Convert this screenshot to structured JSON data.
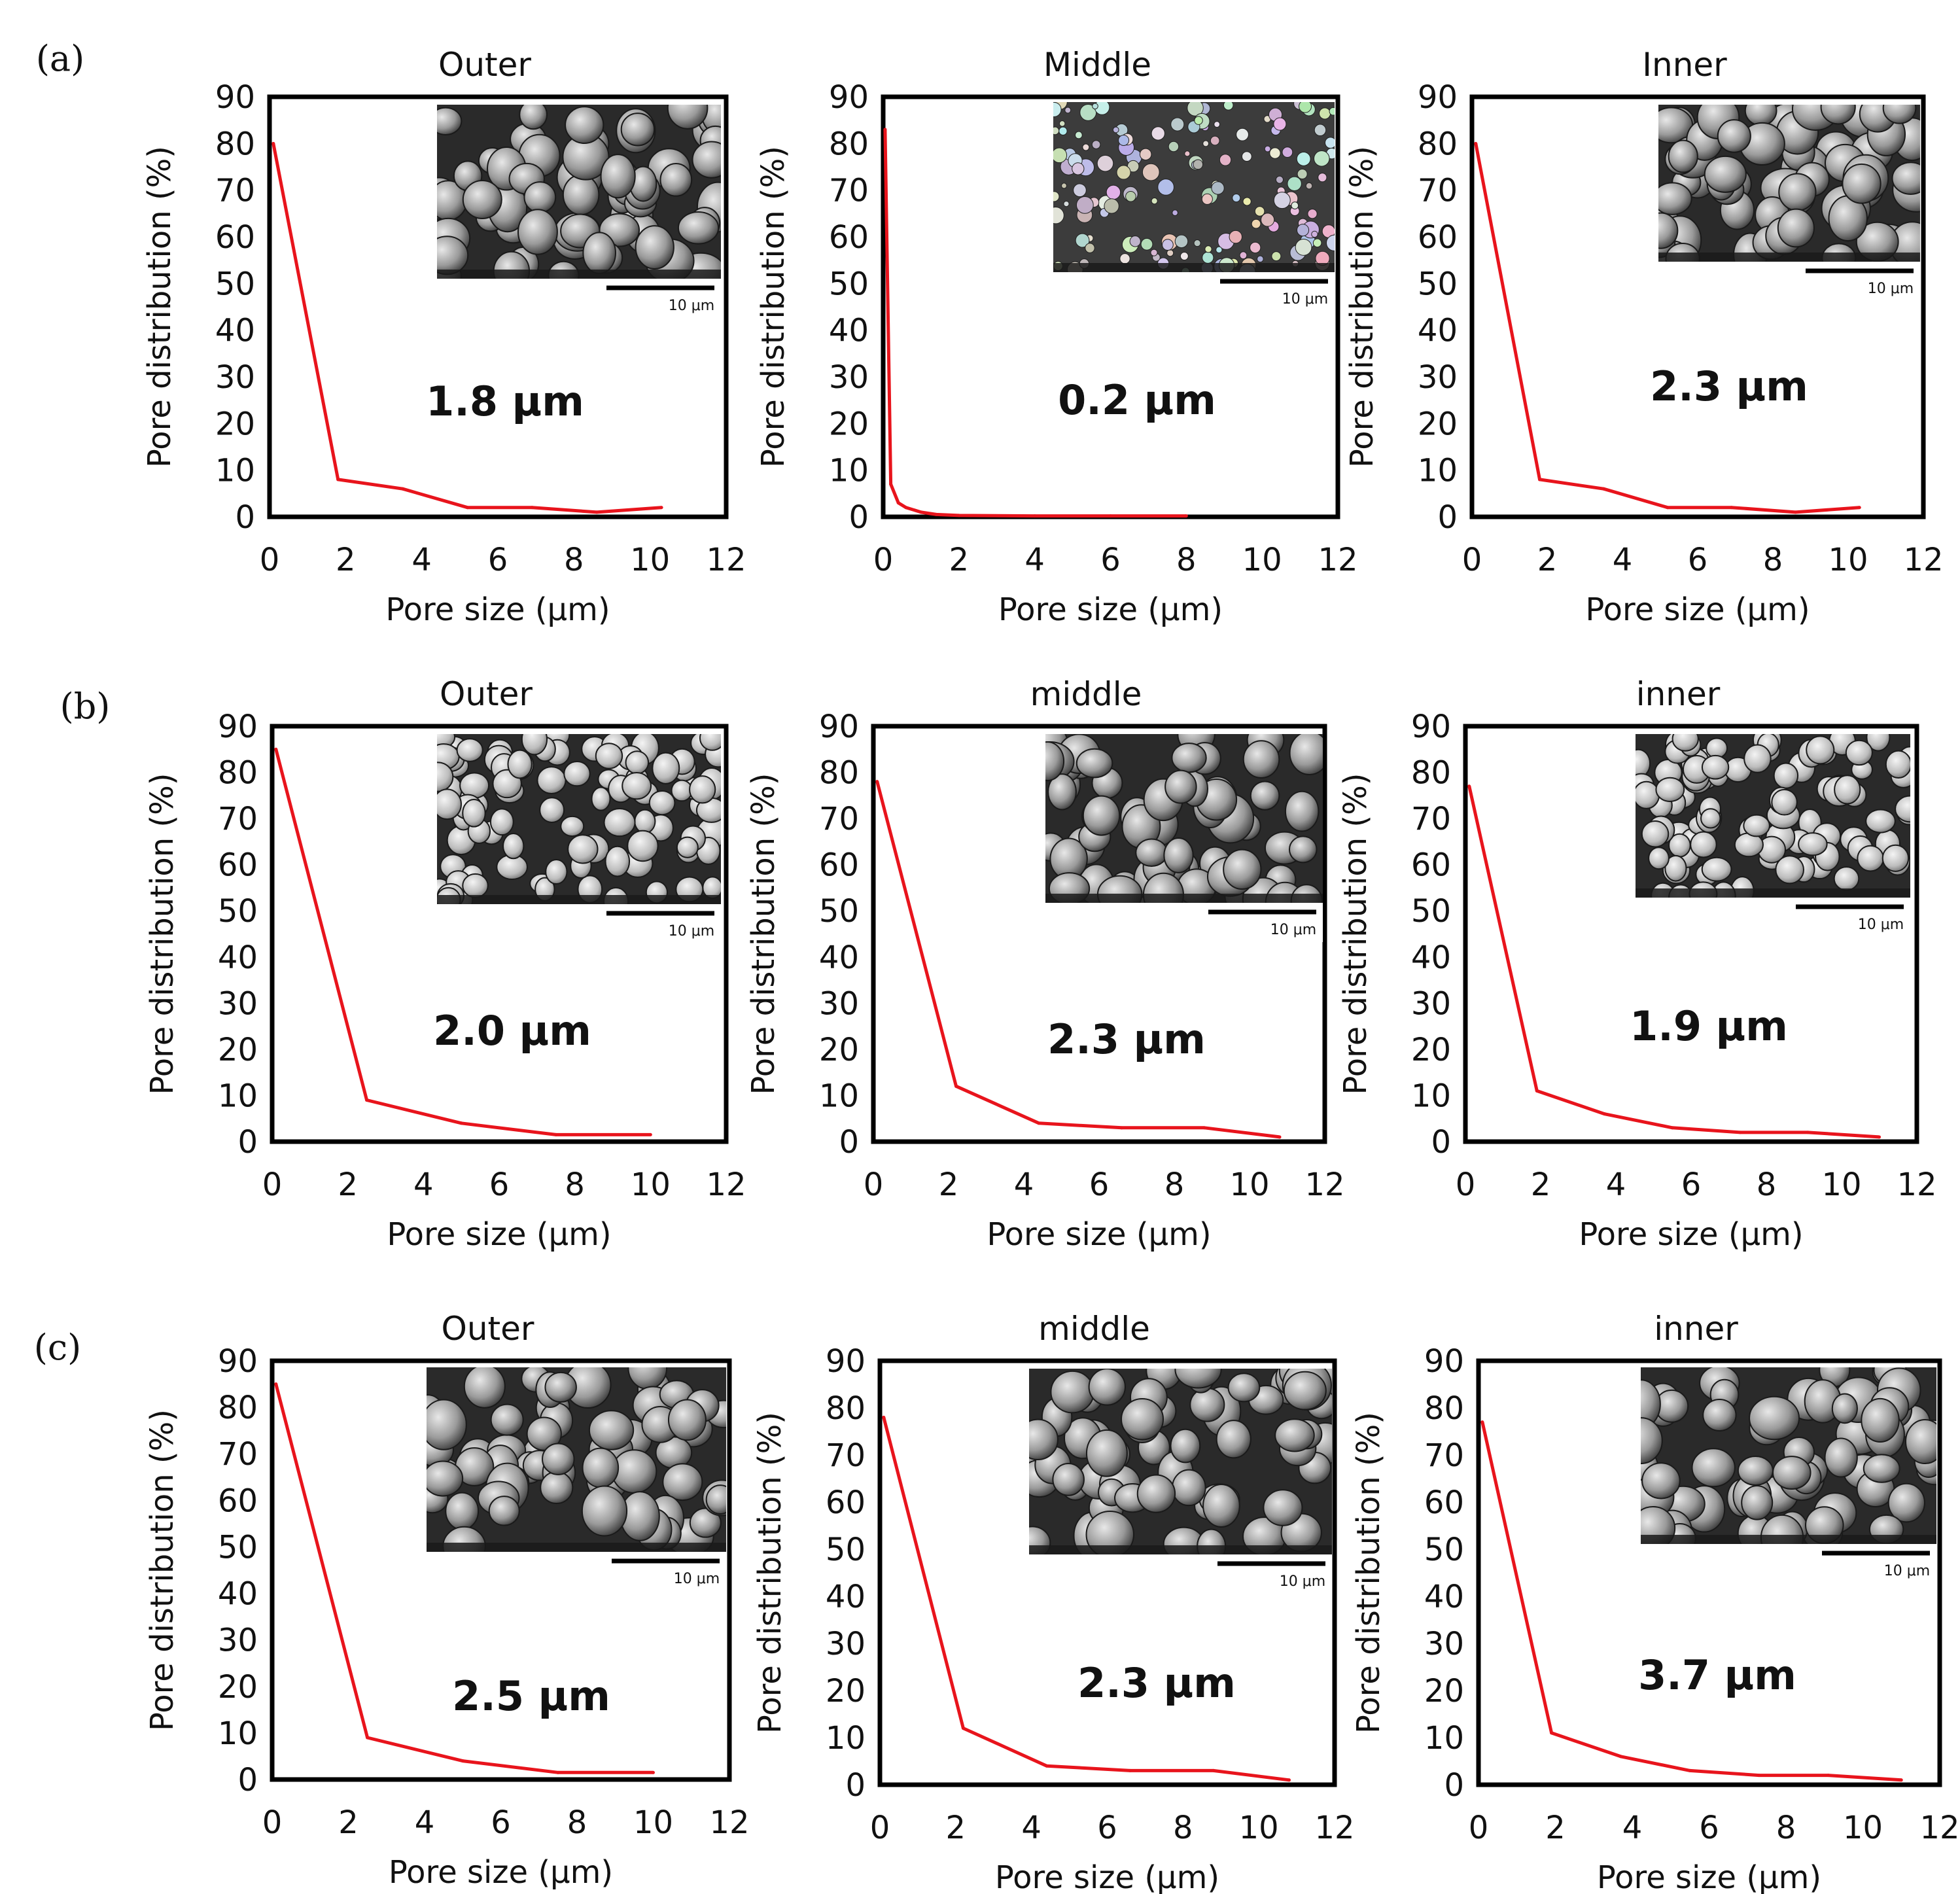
{
  "figure": {
    "row_labels": [
      "(a)",
      "(b)",
      "(c)"
    ],
    "line_color": "#e8141c",
    "scale_bar_label": "10 μm"
  },
  "chart_data": [
    {
      "type": "line",
      "row": "(a)",
      "title": "Outer",
      "xlabel": "Pore size (μm)",
      "ylabel": "Pore distribution (%)",
      "xlim": [
        0,
        12
      ],
      "ylim": [
        0,
        90
      ],
      "xticks": [
        "0",
        "2",
        "4",
        "6",
        "8",
        "10",
        "12"
      ],
      "yticks": [
        "0",
        "10",
        "20",
        "30",
        "40",
        "50",
        "60",
        "70",
        "80",
        "90"
      ],
      "series": [
        {
          "name": "Outer",
          "x": [
            0.1,
            1.8,
            3.5,
            5.2,
            6.9,
            8.6,
            10.3
          ],
          "y": [
            80,
            8,
            6,
            2,
            2,
            1,
            2
          ]
        }
      ],
      "annotation": "1.8 μm",
      "inset": {
        "style": "blobs",
        "scale": "10 μm"
      }
    },
    {
      "type": "line",
      "row": "(a)",
      "title": "Middle",
      "xlabel": "Pore size (μm)",
      "ylabel": "Pore distribution (%)",
      "xlim": [
        0,
        12
      ],
      "ylim": [
        0,
        90
      ],
      "xticks": [
        "0",
        "2",
        "4",
        "6",
        "8",
        "10",
        "12"
      ],
      "yticks": [
        "0",
        "10",
        "20",
        "30",
        "40",
        "50",
        "60",
        "70",
        "80",
        "90"
      ],
      "series": [
        {
          "name": "Middle",
          "x": [
            0.05,
            0.2,
            0.4,
            0.6,
            1.0,
            1.4,
            2.0,
            4.0,
            6.0,
            8.0
          ],
          "y": [
            83,
            7,
            3,
            2,
            1,
            0.5,
            0.3,
            0.2,
            0.2,
            0.2
          ]
        }
      ],
      "annotation": "0.2 μm",
      "inset": {
        "style": "clusters",
        "scale": "10 μm"
      }
    },
    {
      "type": "line",
      "row": "(a)",
      "title": "Inner",
      "xlabel": "Pore size (μm)",
      "ylabel": "Pore distribution (%)",
      "xlim": [
        0,
        12
      ],
      "ylim": [
        0,
        90
      ],
      "xticks": [
        "0",
        "2",
        "4",
        "6",
        "8",
        "10",
        "12"
      ],
      "yticks": [
        "0",
        "10",
        "20",
        "30",
        "40",
        "50",
        "60",
        "70",
        "80",
        "90"
      ],
      "series": [
        {
          "name": "Inner",
          "x": [
            0.1,
            1.8,
            3.5,
            5.2,
            6.9,
            8.6,
            10.3
          ],
          "y": [
            80,
            8,
            6,
            2,
            2,
            1,
            2
          ]
        }
      ],
      "annotation": "2.3 μm",
      "inset": {
        "style": "blobs",
        "scale": "10 μm"
      }
    },
    {
      "type": "line",
      "row": "(b)",
      "title": "Outer",
      "xlabel": "Pore size (μm)",
      "ylabel": "Pore distribution (%)",
      "xlim": [
        0,
        12
      ],
      "ylim": [
        0,
        90
      ],
      "xticks": [
        "0",
        "2",
        "4",
        "6",
        "8",
        "10",
        "12"
      ],
      "yticks": [
        "0",
        "10",
        "20",
        "30",
        "40",
        "50",
        "60",
        "70",
        "80",
        "90"
      ],
      "series": [
        {
          "name": "Outer",
          "x": [
            0.1,
            2.5,
            5.0,
            7.5,
            10.0
          ],
          "y": [
            85,
            9,
            4,
            1.5,
            1.5
          ]
        }
      ],
      "annotation": "2.0 μm",
      "inset": {
        "style": "spheres",
        "scale": "10 μm"
      }
    },
    {
      "type": "line",
      "row": "(b)",
      "title": "middle",
      "xlabel": "Pore size (μm)",
      "ylabel": "Pore distribution (%)",
      "xlim": [
        0,
        12
      ],
      "ylim": [
        0,
        90
      ],
      "xticks": [
        "0",
        "2",
        "4",
        "6",
        "8",
        "10",
        "12"
      ],
      "yticks": [
        "0",
        "10",
        "20",
        "30",
        "40",
        "50",
        "60",
        "70",
        "80",
        "90"
      ],
      "series": [
        {
          "name": "middle",
          "x": [
            0.1,
            2.2,
            4.4,
            6.6,
            8.8,
            10.8
          ],
          "y": [
            78,
            12,
            4,
            3,
            3,
            1
          ]
        }
      ],
      "annotation": "2.3 μm",
      "inset": {
        "style": "blobs",
        "scale": "10 μm"
      }
    },
    {
      "type": "line",
      "row": "(b)",
      "title": "inner",
      "xlabel": "Pore size (μm)",
      "ylabel": "Pore distribution (%)",
      "xlim": [
        0,
        12
      ],
      "ylim": [
        0,
        90
      ],
      "xticks": [
        "0",
        "2",
        "4",
        "6",
        "8",
        "10",
        "12"
      ],
      "yticks": [
        "0",
        "10",
        "20",
        "30",
        "40",
        "50",
        "60",
        "70",
        "80",
        "90"
      ],
      "series": [
        {
          "name": "inner",
          "x": [
            0.1,
            1.9,
            3.7,
            5.5,
            7.3,
            9.1,
            11.0
          ],
          "y": [
            77,
            11,
            6,
            3,
            2,
            2,
            1
          ]
        }
      ],
      "annotation": "1.9 μm",
      "inset": {
        "style": "spheres",
        "scale": "10 μm"
      }
    },
    {
      "type": "line",
      "row": "(c)",
      "title": "Outer",
      "xlabel": "Pore size (μm)",
      "ylabel": "Pore distribution (%)",
      "xlim": [
        0,
        12
      ],
      "ylim": [
        0,
        90
      ],
      "xticks": [
        "0",
        "2",
        "4",
        "6",
        "8",
        "10",
        "12"
      ],
      "yticks": [
        "0",
        "10",
        "20",
        "30",
        "40",
        "50",
        "60",
        "70",
        "80",
        "90"
      ],
      "series": [
        {
          "name": "Outer",
          "x": [
            0.1,
            2.5,
            5.0,
            7.5,
            10.0
          ],
          "y": [
            85,
            9,
            4,
            1.5,
            1.5
          ]
        }
      ],
      "annotation": "2.5 μm",
      "inset": {
        "style": "blobs",
        "scale": "10 μm"
      }
    },
    {
      "type": "line",
      "row": "(c)",
      "title": "middle",
      "xlabel": "Pore size (μm)",
      "ylabel": "Pore distribution (%)",
      "xlim": [
        0,
        12
      ],
      "ylim": [
        0,
        90
      ],
      "xticks": [
        "0",
        "2",
        "4",
        "6",
        "8",
        "10",
        "12"
      ],
      "yticks": [
        "0",
        "10",
        "20",
        "30",
        "40",
        "50",
        "60",
        "70",
        "80",
        "90"
      ],
      "series": [
        {
          "name": "middle",
          "x": [
            0.1,
            2.2,
            4.4,
            6.6,
            8.8,
            10.8
          ],
          "y": [
            78,
            12,
            4,
            3,
            3,
            1
          ]
        }
      ],
      "annotation": "2.3 μm",
      "inset": {
        "style": "blobs",
        "scale": "10 μm"
      }
    },
    {
      "type": "line",
      "row": "(c)",
      "title": "inner",
      "xlabel": "Pore size (μm)",
      "ylabel": "Pore distribution (%)",
      "xlim": [
        0,
        12
      ],
      "ylim": [
        0,
        90
      ],
      "xticks": [
        "0",
        "2",
        "4",
        "6",
        "8",
        "10",
        "12"
      ],
      "yticks": [
        "0",
        "10",
        "20",
        "30",
        "40",
        "50",
        "60",
        "70",
        "80",
        "90"
      ],
      "series": [
        {
          "name": "inner",
          "x": [
            0.1,
            1.9,
            3.7,
            5.5,
            7.3,
            9.1,
            11.0
          ],
          "y": [
            77,
            11,
            6,
            3,
            2,
            2,
            1
          ]
        }
      ],
      "annotation": "3.7 μm",
      "inset": {
        "style": "blobs",
        "scale": "10 μm"
      }
    }
  ]
}
